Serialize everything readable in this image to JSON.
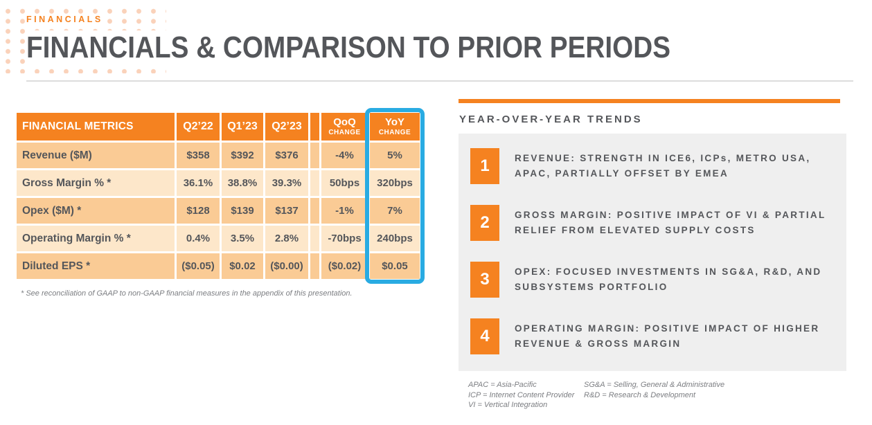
{
  "colors": {
    "orange": "#F58220",
    "rowDark": "#FACB95",
    "rowLight": "#FDE7CA",
    "highlightBlue": "#29ABE2",
    "textDark": "#54565A",
    "panelGray": "#EFEFEF",
    "mutedGray": "#7C7E82",
    "dotPeach": "#FAD2BA",
    "ruleGray": "#DCDCDC",
    "white": "#FFFFFF"
  },
  "header": {
    "eyebrow": "FINANCIALS",
    "title": "FINANCIALS & COMPARISON TO PRIOR PERIODS"
  },
  "table": {
    "header": {
      "metric": "FINANCIAL METRICS",
      "col_q2_22": "Q2’22",
      "col_q1_23": "Q1’23",
      "col_q2_23": "Q2’23",
      "qoq_label": "QoQ",
      "yoy_label": "YoY",
      "change_label": "CHANGE"
    },
    "rows": [
      {
        "metric": "Revenue ($M)",
        "q2_22": "$358",
        "q1_23": "$392",
        "q2_23": "$376",
        "qoq": "-4%",
        "yoy": "5%"
      },
      {
        "metric": "Gross Margin % *",
        "q2_22": "36.1%",
        "q1_23": "38.8%",
        "q2_23": "39.3%",
        "qoq": "50bps",
        "yoy": "320bps"
      },
      {
        "metric": "Opex ($M) *",
        "q2_22": "$128",
        "q1_23": "$139",
        "q2_23": "$137",
        "qoq": "-1%",
        "yoy": "7%"
      },
      {
        "metric": "Operating Margin % *",
        "q2_22": "0.4%",
        "q1_23": "3.5%",
        "q2_23": "2.8%",
        "qoq": "-70bps",
        "yoy": "240bps"
      },
      {
        "metric": "Diluted EPS *",
        "q2_22": "($0.05)",
        "q1_23": "$0.02",
        "q2_23": "($0.00)",
        "qoq": "($0.02)",
        "yoy": "$0.05"
      }
    ],
    "footnote": "* See reconciliation of GAAP to non-GAAP financial measures in the appendix of this presentation."
  },
  "trends": {
    "title": "YEAR-OVER-YEAR TRENDS",
    "items": [
      {
        "number": "1",
        "text": "REVENUE: STRENGTH IN ICE6, ICPs, METRO USA, APAC, PARTIALLY OFFSET BY EMEA"
      },
      {
        "number": "2",
        "text": "GROSS MARGIN: POSITIVE IMPACT OF VI & PARTIAL RELIEF FROM ELEVATED SUPPLY COSTS"
      },
      {
        "number": "3",
        "text": "OPEX: FOCUSED INVESTMENTS IN SG&A, R&D, AND SUBSYSTEMS PORTFOLIO"
      },
      {
        "number": "4",
        "text": "OPERATING MARGIN: POSITIVE IMPACT OF HIGHER REVENUE & GROSS MARGIN"
      }
    ]
  },
  "abbreviations": {
    "col1": [
      "APAC = Asia-Pacific",
      "ICP = Internet Content Provider",
      "VI = Vertical Integration"
    ],
    "col2": [
      "SG&A = Selling, General & Administrative",
      "R&D = Research & Development"
    ]
  }
}
